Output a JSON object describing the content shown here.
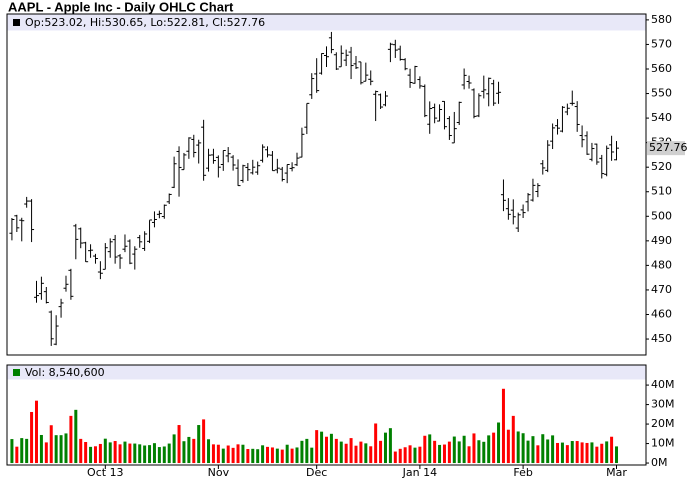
{
  "chart_data": [
    {
      "type": "ohlc",
      "title": "AAPL - Apple Inc - Daily OHLC Chart",
      "legend": "Op:523.02, Hi:530.65, Lo:522.81, Cl:527.76",
      "color": "#000000",
      "open": [
        493.1,
        500.2,
        498.4,
        505.0,
        506.2,
        467.0,
        468.5,
        469.3,
        461.0,
        447.9,
        463.2,
        470.7,
        478.0,
        496.1,
        494.9,
        489.2,
        486.0,
        483.8,
        477.3,
        478.4,
        485.6,
        490.5,
        483.9,
        486.6,
        489.9,
        484.6,
        491.3,
        486.9,
        489.8,
        497.5,
        500.8,
        499.9,
        505.9,
        511.8,
        526.4,
        519.0,
        526.5,
        531.3,
        529.0,
        536.3,
        519.6,
        525.0,
        524.0,
        521.1,
        524.6,
        524.1,
        519.6,
        514.6,
        519.9,
        517.7,
        518.0,
        522.8,
        527.1,
        524.9,
        518.9,
        519.2,
        517.6,
        519.5,
        521.0,
        524.1,
        536.3,
        549.5,
        558.0,
        558.3,
        565.5,
        572.7,
        565.8,
        560.9,
        563.6,
        566.9,
        562.1,
        562.9,
        555.0,
        555.8,
        549.7,
        549.5,
        545.4,
        568.0,
        569.9,
        568.1,
        563.8,
        557.5,
        554.2,
        555.7,
        552.9,
        537.5,
        544.3,
        538.8,
        546.8,
        539.8,
        529.9,
        538.2,
        553.5,
        554.9,
        551.5,
        540.9,
        550.9,
        549.9,
        554.0,
        550.1,
        508.8,
        503.1,
        502.5,
        495.2,
        502.6,
        505.9,
        506.6,
        510.1,
        521.4,
        518.7,
        530.6,
        536.9,
        534.7,
        542.5,
        546.0,
        544.7,
        532.9,
        532.8,
        523.2,
        529.4,
        523.6,
        517.1,
        529.1,
        523.02
      ],
      "high": [
        499.3,
        500.6,
        499.4,
        507.9,
        507.0,
        473.7,
        475.4,
        471.2,
        461.6,
        459.7,
        466.4,
        475.8,
        478.6,
        496.9,
        495.4,
        489.6,
        488.6,
        484.7,
        481.7,
        489.1,
        491.0,
        492.4,
        484.6,
        492.6,
        490.6,
        487.8,
        492.4,
        493.9,
        498.4,
        502.0,
        502.3,
        504.8,
        509.3,
        524.3,
        528.5,
        525.8,
        532.2,
        533.2,
        531.2,
        539.3,
        527.5,
        527.5,
        524.8,
        526.8,
        528.2,
        524.9,
        523.2,
        521.0,
        521.7,
        523.0,
        522.3,
        529.3,
        528.5,
        526.6,
        523.4,
        520.1,
        521.1,
        522.0,
        525.9,
        536.1,
        546.0,
        558.3,
        564.4,
        566.4,
        569.2,
        575.1,
        566.8,
        569.6,
        567.9,
        569.0,
        565.3,
        562.9,
        562.6,
        559.4,
        551.2,
        550.0,
        551.0,
        570.7,
        571.9,
        569.5,
        564.4,
        560.1,
        561.3,
        557.0,
        553.7,
        546.8,
        545.9,
        545.6,
        546.9,
        540.8,
        542.5,
        546.7,
        560.2,
        557.3,
        552.1,
        550.1,
        557.3,
        556.5,
        555.6,
        554.8,
        515.0,
        507.4,
        506.9,
        501.5,
        504.8,
        509.5,
        515.3,
        513.5,
        522.9,
        531.0,
        537.8,
        539.6,
        544.9,
        545.9,
        551.2,
        546.9,
        537.0,
        534.6,
        529.9,
        529.6,
        525.0,
        528.8,
        532.8,
        530.65
      ],
      "low": [
        490.2,
        493.6,
        489.8,
        503.5,
        489.5,
        464.8,
        466.0,
        464.5,
        447.2,
        447.5,
        458.7,
        469.3,
        466.0,
        482.5,
        487.0,
        481.4,
        483.1,
        480.7,
        474.4,
        478.4,
        483.1,
        480.7,
        478.6,
        485.4,
        480.5,
        478.3,
        487.2,
        485.9,
        489.1,
        495.5,
        499.2,
        499.0,
        505.0,
        511.5,
        508.0,
        519.0,
        523.4,
        524.0,
        521.5,
        514.5,
        518.2,
        521.4,
        515.8,
        518.5,
        522.0,
        518.6,
        512.4,
        513.7,
        514.4,
        517.0,
        516.9,
        521.9,
        524.0,
        518.6,
        517.5,
        514.2,
        513.5,
        518.3,
        520.5,
        524.0,
        533.5,
        547.8,
        550.3,
        557.7,
        560.8,
        566.4,
        559.6,
        560.9,
        561.2,
        555.9,
        560.0,
        553.7,
        555.0,
        553.4,
        538.8,
        543.7,
        544.8,
        562.8,
        564.5,
        563.4,
        559.5,
        552.3,
        554.0,
        552.0,
        540.4,
        533.6,
        537.9,
        538.7,
        535.4,
        531.1,
        529.9,
        537.2,
        551.7,
        552.0,
        539.9,
        540.4,
        548.0,
        544.8,
        545.0,
        545.8,
        502.1,
        498.6,
        496.7,
        493.6,
        499.3,
        502.0,
        506.0,
        507.8,
        517.0,
        518.0,
        527.4,
        533.3,
        534.2,
        541.2,
        545.1,
        534.4,
        528.1,
        525.0,
        522.4,
        521.0,
        515.4,
        516.3,
        522.6,
        522.81
      ],
      "close": [
        498.7,
        495.3,
        498.2,
        506.2,
        494.6,
        467.7,
        472.7,
        464.9,
        450.1,
        455.3,
        464.7,
        472.3,
        467.4,
        490.6,
        489.1,
        481.5,
        486.2,
        482.8,
        476.8,
        487.2,
        489.6,
        483.4,
        483.0,
        487.8,
        480.9,
        486.6,
        489.6,
        492.8,
        498.5,
        498.7,
        501.1,
        504.5,
        508.9,
        521.4,
        519.9,
        525.0,
        531.9,
        526.0,
        529.9,
        516.7,
        524.9,
        522.7,
        520.0,
        526.8,
        525.5,
        520.9,
        512.5,
        520.6,
        519.0,
        520.0,
        520.6,
        528.2,
        525.0,
        518.6,
        519.6,
        515.0,
        521.1,
        519.8,
        523.7,
        533.4,
        546.0,
        556.1,
        551.2,
        566.3,
        565.0,
        567.9,
        560.0,
        566.4,
        565.6,
        561.4,
        560.5,
        554.4,
        557.5,
        555.0,
        550.8,
        544.5,
        549.0,
        570.1,
        567.7,
        563.9,
        560.1,
        554.5,
        561.0,
        553.1,
        541.0,
        543.9,
        540.0,
        543.5,
        536.5,
        532.9,
        535.7,
        546.4,
        557.4,
        554.3,
        540.7,
        549.1,
        551.5,
        556.2,
        546.1,
        550.5,
        506.5,
        500.8,
        499.8,
        500.6,
        501.5,
        508.8,
        512.6,
        512.5,
        519.7,
        529.0,
        536.0,
        535.9,
        544.4,
        544.0,
        546.0,
        537.4,
        531.2,
        525.3,
        527.6,
        522.1,
        517.4,
        527.7,
        526.2,
        527.76
      ],
      "xlim": [
        -1,
        129
      ],
      "ylim": [
        443.5,
        582.4
      ],
      "yticks": [
        450,
        460,
        470,
        480,
        490,
        500,
        510,
        520,
        530,
        540,
        550,
        560,
        570,
        580
      ],
      "grid": false
    },
    {
      "type": "bar",
      "legend": "Vol: 8,540,600",
      "up_color": "#008000",
      "down_color": "#ff0000",
      "values": [
        12.3,
        8.4,
        12.8,
        12.4,
        26.2,
        32.0,
        14.4,
        10.6,
        19.4,
        14.3,
        14.3,
        15.2,
        24.2,
        27.3,
        12.4,
        10.8,
        8.3,
        8.6,
        9.8,
        12.5,
        10.6,
        11.3,
        9.6,
        11.0,
        10.0,
        10.0,
        9.6,
        9.0,
        9.2,
        10.2,
        8.2,
        8.5,
        10.0,
        14.7,
        19.5,
        11.2,
        13.4,
        12.4,
        19.5,
        22.4,
        12.2,
        9.6,
        9.4,
        7.4,
        9.0,
        7.8,
        9.6,
        9.4,
        7.2,
        7.3,
        7.1,
        9.1,
        8.3,
        8.0,
        7.4,
        6.9,
        9.4,
        7.4,
        8.0,
        11.4,
        12.4,
        7.9,
        16.9,
        16.1,
        13.5,
        15.0,
        12.4,
        11.0,
        9.9,
        12.8,
        8.9,
        11.0,
        10.1,
        8.6,
        20.3,
        11.4,
        15.6,
        17.9,
        5.9,
        7.3,
        8.1,
        9.1,
        7.9,
        8.4,
        14.0,
        14.7,
        11.4,
        9.3,
        9.5,
        11.0,
        13.6,
        11.1,
        14.0,
        8.6,
        15.2,
        11.7,
        10.9,
        14.2,
        15.6,
        20.8,
        38.1,
        17.1,
        24.2,
        16.2,
        15.3,
        11.5,
        13.8,
        9.1,
        14.8,
        12.1,
        14.2,
        10.3,
        10.5,
        9.2,
        11.3,
        11.3,
        10.6,
        10.3,
        10.6,
        8.4,
        9.9,
        11.1,
        13.5,
        8.5406
      ],
      "xlim": [
        -1,
        129
      ],
      "xticks": [
        {
          "value": 19,
          "label": "Oct 13"
        },
        {
          "value": 42,
          "label": "Nov"
        },
        {
          "value": 62,
          "label": "Dec"
        },
        {
          "value": 83,
          "label": "Jan 14"
        },
        {
          "value": 104,
          "label": "Feb"
        },
        {
          "value": 123,
          "label": "Mar"
        }
      ],
      "ylim": [
        -1,
        50.3
      ],
      "yticks": [
        {
          "value": 0,
          "label": "0M"
        },
        {
          "value": 10,
          "label": "10M"
        },
        {
          "value": 20,
          "label": "20M"
        },
        {
          "value": 30,
          "label": "30M"
        },
        {
          "value": 40,
          "label": "40M"
        }
      ]
    }
  ]
}
